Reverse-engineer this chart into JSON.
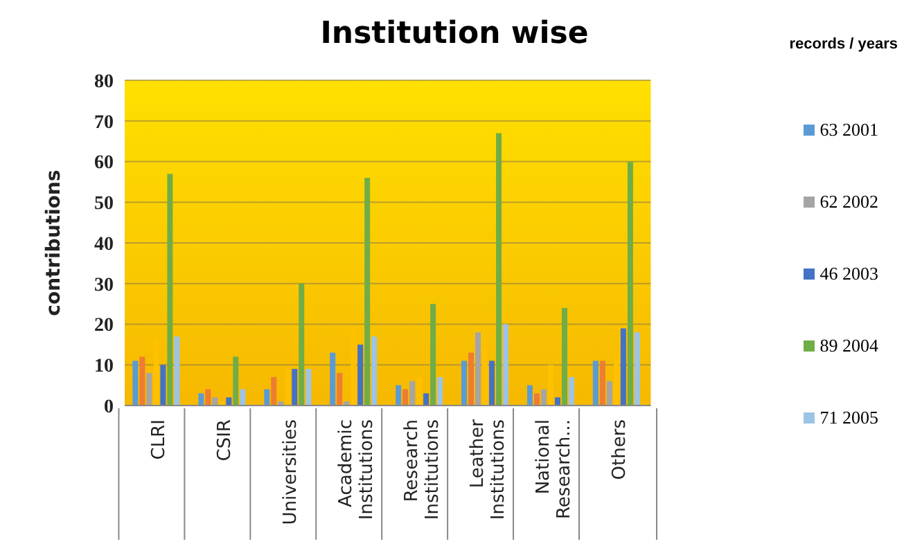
{
  "chart_data": {
    "type": "bar",
    "title": "Institution wise",
    "ylabel": "contributions",
    "legend_title": "records / years",
    "categories": [
      "CLRI",
      "CSIR",
      "Universities",
      "Academic Institutions",
      "Research Institutions",
      "Leather Institutions",
      "National Research...",
      "Others"
    ],
    "series": [
      {
        "name": "63 2001",
        "color": "#5b9bd5",
        "values": [
          11,
          3,
          4,
          13,
          5,
          11,
          5,
          11
        ]
      },
      {
        "color": "#ed7d31",
        "values": [
          12,
          4,
          7,
          8,
          4,
          13,
          3,
          11
        ]
      },
      {
        "name": "62 2002",
        "color": "#a5a5a5",
        "values": [
          8,
          2,
          1,
          1,
          6,
          18,
          4,
          6
        ]
      },
      {
        "color": "#ffc000",
        "values": [
          16,
          1,
          9,
          19,
          7,
          14,
          10,
          13
        ]
      },
      {
        "name": "46 2003",
        "color": "#4472c4",
        "values": [
          10,
          2,
          9,
          15,
          3,
          11,
          2,
          19
        ]
      },
      {
        "name": "89 2004",
        "color": "#70ad47",
        "values": [
          57,
          12,
          30,
          56,
          25,
          67,
          24,
          60
        ]
      },
      {
        "name": "71 2005",
        "color": "#9dc3e6",
        "values": [
          17,
          4,
          9,
          17,
          7,
          20,
          7,
          18
        ]
      }
    ],
    "ylim": [
      0,
      80
    ],
    "yticks": [
      0,
      10,
      20,
      30,
      40,
      50,
      60,
      70,
      80
    ],
    "grid": "y",
    "legend": "right"
  }
}
